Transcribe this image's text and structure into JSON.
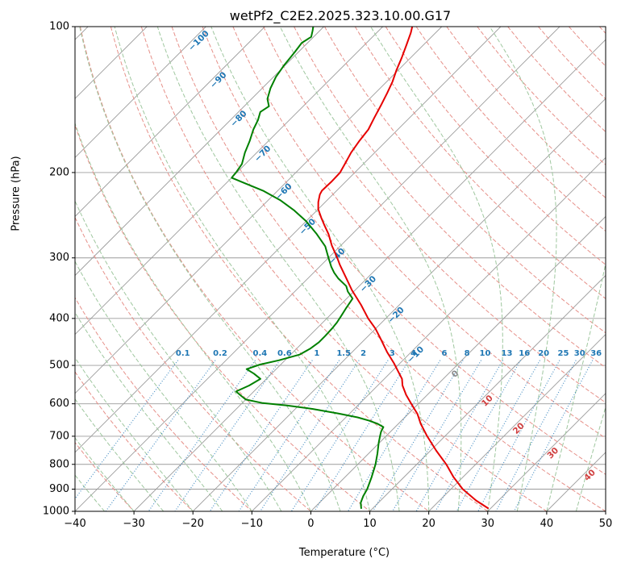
{
  "title": "wetPf2_C2E2.2025.323.10.00.G17",
  "axes": {
    "x_label": "Temperature (°C)",
    "y_label": "Pressure (hPa)",
    "x_ticks": [
      -40,
      -30,
      -20,
      -10,
      0,
      10,
      20,
      30,
      40,
      50
    ],
    "y_ticks": [
      100,
      200,
      300,
      400,
      500,
      600,
      700,
      800,
      900,
      1000
    ],
    "x_range": [
      -40,
      50
    ],
    "p_range": [
      100,
      1000
    ]
  },
  "chart_data": {
    "type": "line",
    "variant": "skew-t-log-p",
    "title": "wetPf2_C2E2.2025.323.10.00.G17",
    "xlabel": "Temperature (°C)",
    "ylabel": "Pressure (hPa)",
    "x_range_c": [
      -40,
      50
    ],
    "pressure_range_hpa": [
      100,
      1000
    ],
    "skew_ratio": 1.0,
    "grid": true,
    "isotherms_c": {
      "min": -160,
      "max": 50,
      "step": 10
    },
    "dry_adiabats_theta_c": {
      "min": -30,
      "max": 190,
      "step": 10
    },
    "moist_adiabats_start_c": {
      "min": -40,
      "max": 65,
      "step": 5
    },
    "mixing_ratio_g_kg": [
      0.1,
      0.2,
      0.4,
      0.6,
      1,
      1.5,
      2,
      3,
      4,
      6,
      8,
      10,
      13,
      16,
      20,
      25,
      30,
      36
    ],
    "mixing_ratio_label_p_hpa": 473,
    "mixing_ratio_line_top_p_hpa": 488,
    "isotherm_labels": [
      {
        "value": -100,
        "p": 107
      },
      {
        "value": -90,
        "p": 129
      },
      {
        "value": -80,
        "p": 155
      },
      {
        "value": -70,
        "p": 183
      },
      {
        "value": -60,
        "p": 219
      },
      {
        "value": -50,
        "p": 259
      },
      {
        "value": -40,
        "p": 298
      },
      {
        "value": -30,
        "p": 340
      },
      {
        "value": -20,
        "p": 394
      },
      {
        "value": -10,
        "p": 475
      },
      {
        "value": 0,
        "p": 521
      },
      {
        "value": 10,
        "p": 592
      },
      {
        "value": 20,
        "p": 675
      },
      {
        "value": 30,
        "p": 759
      },
      {
        "value": 40,
        "p": 843
      }
    ],
    "series": [
      {
        "name": "temperature",
        "color": "#e60000",
        "points": [
          [
            985,
            29.5
          ],
          [
            950,
            26.2
          ],
          [
            900,
            22
          ],
          [
            850,
            18.4
          ],
          [
            800,
            15
          ],
          [
            750,
            11
          ],
          [
            700,
            7
          ],
          [
            660,
            3.8
          ],
          [
            630,
            1.6
          ],
          [
            600,
            -1.2
          ],
          [
            575,
            -3.6
          ],
          [
            550,
            -5.8
          ],
          [
            533,
            -7
          ],
          [
            510,
            -9.4
          ],
          [
            495,
            -11
          ],
          [
            470,
            -14
          ],
          [
            440,
            -17.5
          ],
          [
            420,
            -20
          ],
          [
            400,
            -23
          ],
          [
            375,
            -26.5
          ],
          [
            350,
            -30.5
          ],
          [
            330,
            -33.6
          ],
          [
            310,
            -36.9
          ],
          [
            300,
            -38.5
          ],
          [
            283,
            -41.5
          ],
          [
            268,
            -44
          ],
          [
            256,
            -46.4
          ],
          [
            248,
            -48
          ],
          [
            238,
            -50
          ],
          [
            230,
            -51.2
          ],
          [
            222,
            -52.2
          ],
          [
            218,
            -52.5
          ],
          [
            209,
            -52.4
          ],
          [
            200,
            -52.5
          ],
          [
            190,
            -53.3
          ],
          [
            182,
            -54
          ],
          [
            172,
            -54.6
          ],
          [
            163,
            -55
          ],
          [
            154,
            -56
          ],
          [
            145,
            -57
          ],
          [
            137,
            -58
          ],
          [
            130,
            -59
          ],
          [
            123,
            -60.3
          ],
          [
            116,
            -61.5
          ],
          [
            109,
            -62.9
          ],
          [
            103,
            -64.2
          ],
          [
            100,
            -65
          ]
        ]
      },
      {
        "name": "dewpoint",
        "color": "#008000",
        "points": [
          [
            985,
            8
          ],
          [
            960,
            7
          ],
          [
            930,
            6.3
          ],
          [
            900,
            5.8
          ],
          [
            850,
            4.5
          ],
          [
            800,
            3
          ],
          [
            760,
            1.5
          ],
          [
            720,
            -0.2
          ],
          [
            700,
            -1
          ],
          [
            685,
            -1.6
          ],
          [
            670,
            -2
          ],
          [
            660,
            -3.5
          ],
          [
            650,
            -5.5
          ],
          [
            640,
            -8
          ],
          [
            628,
            -12
          ],
          [
            615,
            -17
          ],
          [
            605,
            -22
          ],
          [
            598,
            -26.5
          ],
          [
            588,
            -30
          ],
          [
            577,
            -31.5
          ],
          [
            566,
            -33
          ],
          [
            550,
            -31.8
          ],
          [
            533,
            -31
          ],
          [
            520,
            -33
          ],
          [
            509,
            -35
          ],
          [
            498,
            -33.5
          ],
          [
            488,
            -31
          ],
          [
            475,
            -28.5
          ],
          [
            462,
            -27.7
          ],
          [
            448,
            -27.3
          ],
          [
            435,
            -27.3
          ],
          [
            420,
            -27.4
          ],
          [
            408,
            -27.6
          ],
          [
            395,
            -28
          ],
          [
            380,
            -28.5
          ],
          [
            364,
            -29
          ],
          [
            352,
            -31
          ],
          [
            343,
            -32.2
          ],
          [
            331,
            -34.8
          ],
          [
            322,
            -36.5
          ],
          [
            313,
            -38
          ],
          [
            300,
            -40
          ],
          [
            284,
            -42.5
          ],
          [
            268,
            -46
          ],
          [
            252,
            -50
          ],
          [
            239,
            -54
          ],
          [
            228,
            -58
          ],
          [
            218,
            -62.5
          ],
          [
            211,
            -66.5
          ],
          [
            205,
            -70
          ],
          [
            199,
            -70.2
          ],
          [
            192,
            -70.6
          ],
          [
            182,
            -72
          ],
          [
            172,
            -73.2
          ],
          [
            163,
            -74.5
          ],
          [
            156,
            -75.3
          ],
          [
            150,
            -76.3
          ],
          [
            146,
            -75.8
          ],
          [
            141,
            -77.3
          ],
          [
            134,
            -78.6
          ],
          [
            127,
            -79.6
          ],
          [
            120,
            -80.2
          ],
          [
            113,
            -80.6
          ],
          [
            108,
            -81
          ],
          [
            105,
            -80.4
          ],
          [
            102,
            -81.2
          ],
          [
            100,
            -81.8
          ]
        ]
      }
    ],
    "colors": {
      "isotherm": "#9c9c9c",
      "pressure_grid": "#9c9c9c",
      "dry_adiabat": "#e69089",
      "moist_adiabat": "#9fc79f",
      "mixing_ratio": "#4a90c4",
      "label_negative": "#1f77b4",
      "label_zero": "#8a8a8a",
      "label_positive": "#d04040"
    }
  }
}
